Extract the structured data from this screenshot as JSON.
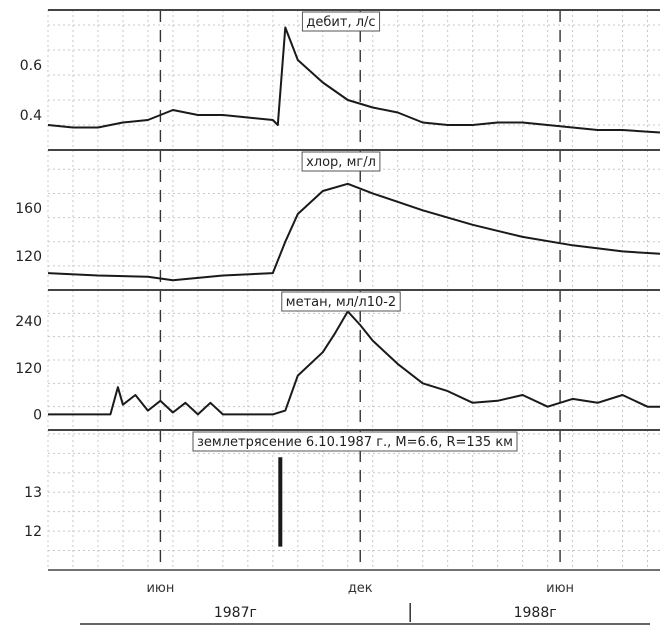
{
  "chart_data": [
    {
      "type": "line",
      "title": "дебит, л/с",
      "xlim": [
        0,
        24.5
      ],
      "ylim": [
        0.26,
        0.82
      ],
      "yticks": [
        0.4,
        0.6
      ],
      "ytick_labels": [
        "0.4",
        "0.6"
      ],
      "grid": true,
      "series": [
        {
          "x": [
            0,
            1,
            2,
            3,
            4,
            5,
            6,
            7,
            8,
            9,
            9.2,
            9.5,
            10,
            11,
            12,
            13,
            14,
            15,
            16,
            17,
            18,
            19,
            20,
            21,
            22,
            23,
            24.5
          ],
          "y": [
            0.36,
            0.35,
            0.35,
            0.37,
            0.38,
            0.42,
            0.4,
            0.4,
            0.39,
            0.38,
            0.36,
            0.75,
            0.62,
            0.53,
            0.46,
            0.43,
            0.41,
            0.37,
            0.36,
            0.36,
            0.37,
            0.37,
            0.36,
            0.35,
            0.34,
            0.34,
            0.33
          ]
        }
      ]
    },
    {
      "type": "line",
      "title": "хлор, мг/л",
      "xlim": [
        0,
        24.5
      ],
      "ylim": [
        92,
        208
      ],
      "yticks": [
        120,
        160
      ],
      "ytick_labels": [
        "120",
        "160"
      ],
      "grid": true,
      "series": [
        {
          "x": [
            0,
            2,
            4,
            5,
            7,
            9,
            9.5,
            10,
            11,
            12,
            13,
            15,
            17,
            19,
            21,
            23,
            24.5
          ],
          "y": [
            106,
            104,
            103,
            100,
            104,
            106,
            132,
            155,
            174,
            180,
            172,
            158,
            146,
            136,
            129,
            124,
            122
          ]
        }
      ]
    },
    {
      "type": "line",
      "title": "метан, мл/л10-2",
      "xlim": [
        0,
        24.5
      ],
      "ylim": [
        -40,
        320
      ],
      "yticks": [
        0,
        120,
        240
      ],
      "ytick_labels": [
        "0",
        "120",
        "240"
      ],
      "grid": true,
      "series": [
        {
          "x": [
            0,
            1,
            2,
            2.5,
            2.8,
            3,
            3.5,
            4,
            4.5,
            5,
            5.5,
            6,
            6.5,
            7,
            7.5,
            8,
            8.5,
            9,
            9.5,
            10,
            11,
            11.5,
            12,
            12.5,
            13,
            14,
            15,
            16,
            17,
            18,
            19,
            20,
            21,
            22,
            23,
            24,
            24.5
          ],
          "y": [
            0,
            0,
            0,
            0,
            70,
            25,
            50,
            10,
            35,
            5,
            30,
            0,
            30,
            0,
            0,
            0,
            0,
            0,
            10,
            100,
            160,
            210,
            265,
            230,
            190,
            130,
            80,
            60,
            30,
            35,
            50,
            20,
            40,
            30,
            50,
            20,
            20
          ]
        }
      ]
    },
    {
      "type": "bar",
      "title": "землетрясение 6.10.1987 г., M=6.6, R=135 км",
      "xlim": [
        0,
        24.5
      ],
      "ylim": [
        11,
        14.6
      ],
      "yticks": [
        12,
        13
      ],
      "ytick_labels": [
        "12",
        "13"
      ],
      "grid": true,
      "bars": [
        {
          "x": 9.3,
          "y_from": 11.6,
          "y_to": 13.9
        }
      ]
    }
  ],
  "x_axis": {
    "ticks": [
      {
        "x": 4.5,
        "label": "июн"
      },
      {
        "x": 12.5,
        "label": "дек"
      },
      {
        "x": 20.5,
        "label": "июн"
      }
    ],
    "years": [
      {
        "label": "1987г",
        "x": 7.5
      },
      {
        "label": "1988г",
        "x": 19.5
      }
    ],
    "year_divider_x": 14.5
  },
  "colors": {
    "line": "#1a1a1a",
    "grid": "#c8c8c8",
    "dashed_month": "#333333",
    "frame": "#444444"
  }
}
